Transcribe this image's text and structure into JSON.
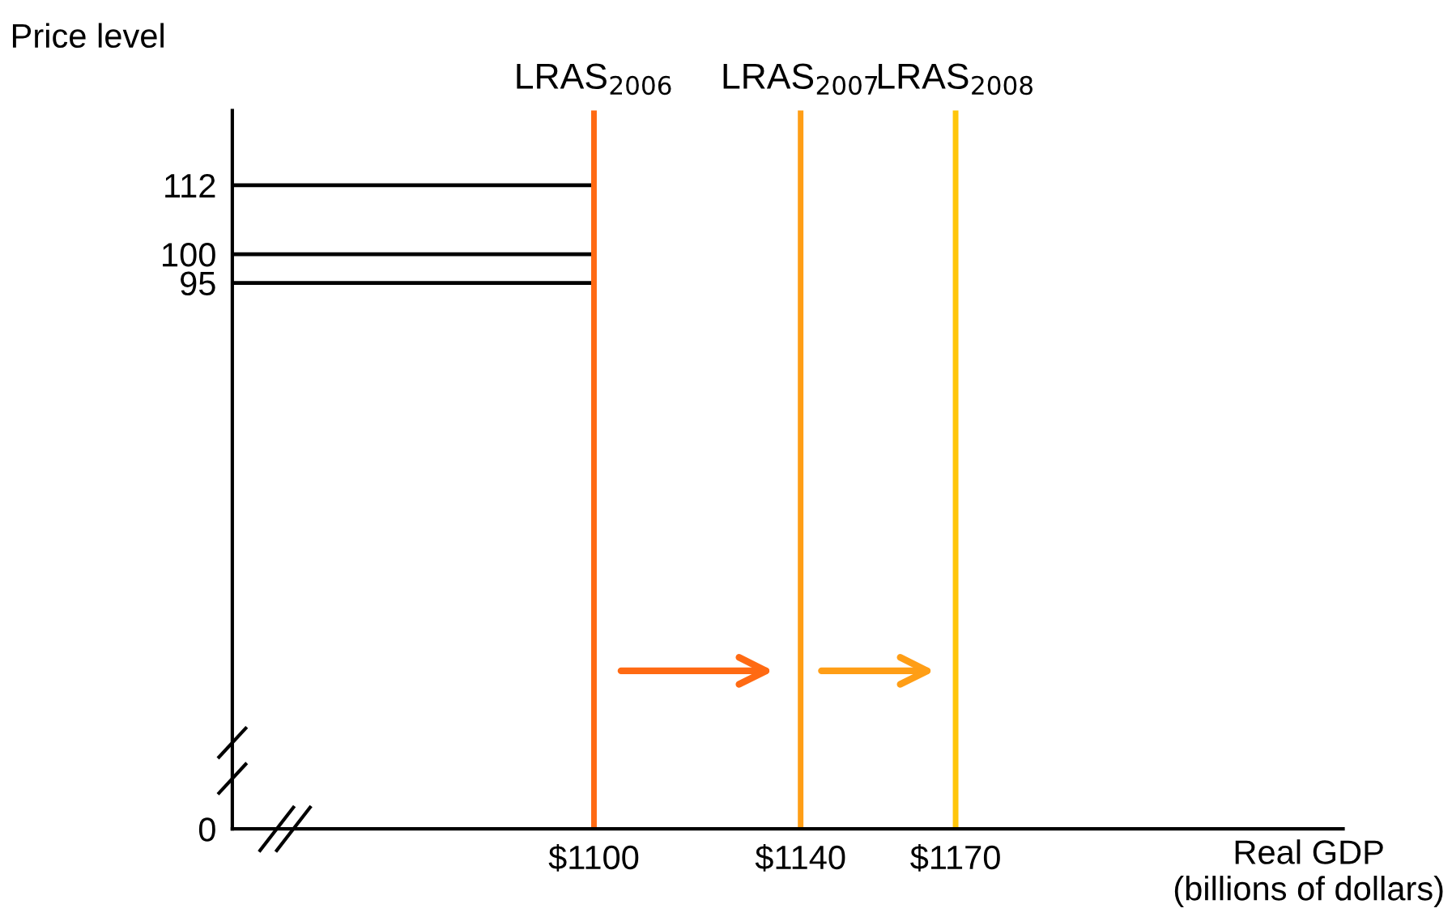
{
  "chart_data": {
    "type": "line",
    "ylabel": "Price level",
    "xlabel": "Real GDP\n(billions of dollars)",
    "xlim": [
      1030,
      1245
    ],
    "xticks": [
      {
        "value": 1100,
        "label": "$1100"
      },
      {
        "value": 1140,
        "label": "$1140"
      },
      {
        "value": 1170,
        "label": "$1170"
      }
    ],
    "ylim": [
      0,
      125
    ],
    "yticks": [
      0,
      95,
      100,
      112
    ],
    "ref_lines": [
      {
        "axis": "y",
        "value": 112,
        "color": "#000000"
      },
      {
        "axis": "y",
        "value": 100,
        "color": "#000000"
      },
      {
        "axis": "y",
        "value": 95,
        "color": "#000000"
      },
      {
        "axis": "x",
        "value": 1100,
        "label": "LRAS$_{2006}$",
        "color": "#ff6a13"
      },
      {
        "axis": "x",
        "value": 1140,
        "label": "LRAS$_{2007}$",
        "color": "#ff9e16"
      },
      {
        "axis": "x",
        "value": 1170,
        "label": "LRAS$_{2008}$",
        "color": "#ffc60a"
      }
    ],
    "grid": false
  }
}
